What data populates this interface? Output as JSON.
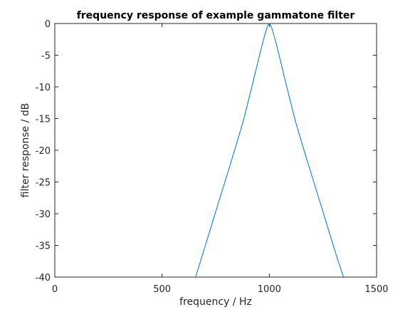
{
  "chart_data": {
    "type": "line",
    "title": "frequency response of example gammatone filter",
    "xlabel": "frequency / Hz",
    "ylabel": "filter response / dB",
    "xlim": [
      0,
      1500
    ],
    "ylim": [
      -40,
      0
    ],
    "xticks": [
      "0",
      "500",
      "1000",
      "1500"
    ],
    "yticks": [
      "0",
      "-5",
      "-10",
      "-15",
      "-20",
      "-25",
      "-30",
      "-35",
      "-40"
    ],
    "grid": false,
    "line_color": "#0072bd",
    "series": [
      {
        "x": [
          656,
          680,
          720,
          760,
          800,
          840,
          880,
          920,
          950,
          970,
          985,
          993,
          1000,
          1007,
          1015,
          1030,
          1050,
          1080,
          1120,
          1160,
          1200,
          1240,
          1280,
          1320,
          1346
        ],
        "values": [
          -40,
          -37.4,
          -33.0,
          -28.6,
          -24.2,
          -19.8,
          -15.2,
          -9.8,
          -5.6,
          -2.9,
          -1.1,
          -0.3,
          0,
          -0.3,
          -1.1,
          -2.9,
          -5.6,
          -9.8,
          -15.2,
          -19.8,
          -24.2,
          -28.6,
          -33.0,
          -37.4,
          -40
        ]
      }
    ]
  }
}
